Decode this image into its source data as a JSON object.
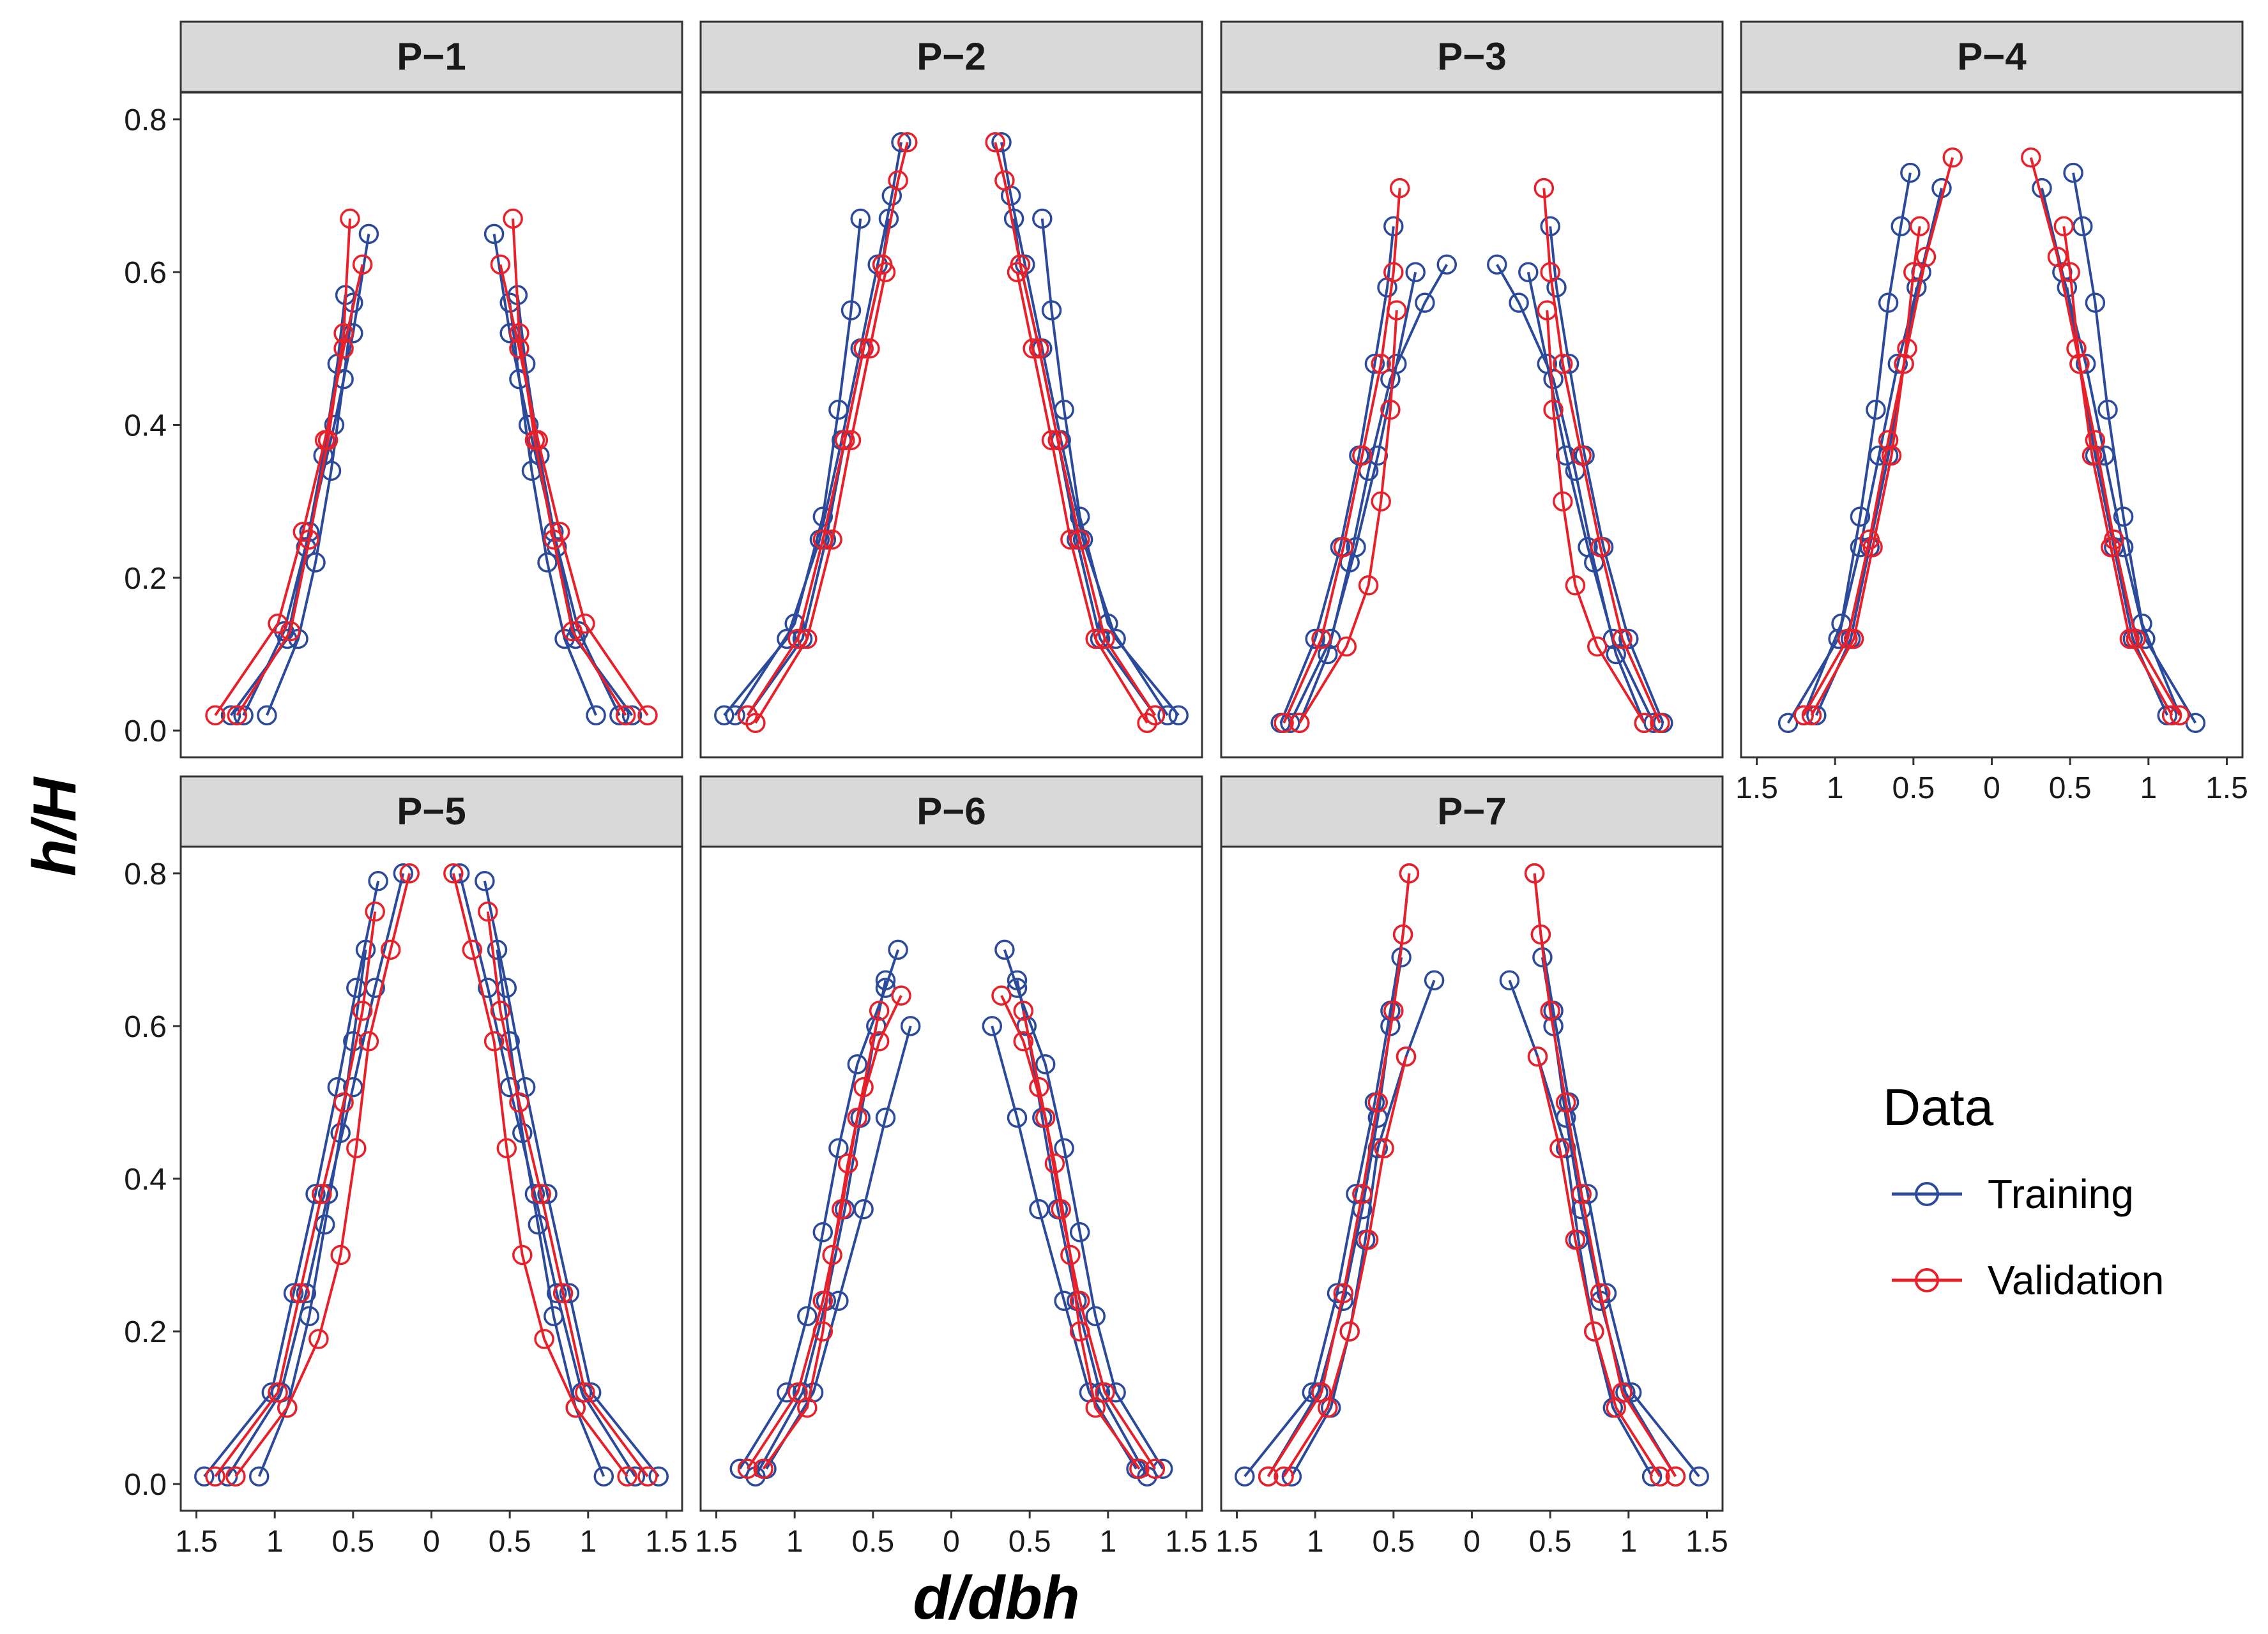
{
  "chart_data": {
    "type": "line",
    "facet_layout": "wrap 4 columns",
    "xlabel": "d/dbh",
    "ylabel": "h/H",
    "xlim": [
      -1.6,
      1.6
    ],
    "ylim": [
      -0.035,
      0.835
    ],
    "x_ticks": [
      -1.5,
      -1,
      -0.5,
      0,
      0.5,
      1,
      1.5
    ],
    "x_tick_labels": [
      "1.5",
      "1",
      "0.5",
      "0",
      "0.5",
      "1",
      "1.5"
    ],
    "y_ticks": [
      0.0,
      0.2,
      0.4,
      0.6,
      0.8
    ],
    "y_tick_labels": [
      "0.0",
      "0.2",
      "0.4",
      "0.6",
      "0.8"
    ],
    "legend": {
      "title": "Data",
      "position": "right",
      "entries": [
        {
          "name": "Training",
          "color": "#2b4a9b"
        },
        {
          "name": "Validation",
          "color": "#e8202a"
        }
      ]
    },
    "marker": "open-circle",
    "note": "Each panel shows mirrored stem profiles (relative diameter d/dbh plotted symmetrically on both sides of 0) against relative height h/H for many trees; series below are representative profiles estimated from the figure.",
    "panels": [
      {
        "title": "P−1",
        "series": [
          {
            "group": "Training",
            "h": [
              0.02,
              0.12,
              0.24,
              0.36,
              0.48,
              0.57
            ],
            "r": [
              1.28,
              0.92,
              0.8,
              0.69,
              0.6,
              0.55
            ]
          },
          {
            "group": "Training",
            "h": [
              0.02,
              0.13,
              0.26,
              0.4,
              0.52,
              0.65
            ],
            "r": [
              1.2,
              0.94,
              0.78,
              0.62,
              0.5,
              0.4
            ]
          },
          {
            "group": "Training",
            "h": [
              0.02,
              0.12,
              0.22,
              0.34,
              0.46,
              0.56
            ],
            "r": [
              1.05,
              0.85,
              0.74,
              0.64,
              0.56,
              0.5
            ]
          },
          {
            "group": "Validation",
            "h": [
              0.02,
              0.14,
              0.26,
              0.38,
              0.5,
              0.61
            ],
            "r": [
              1.38,
              0.98,
              0.82,
              0.68,
              0.56,
              0.44
            ]
          },
          {
            "group": "Validation",
            "h": [
              0.02,
              0.13,
              0.25,
              0.38,
              0.52,
              0.67
            ],
            "r": [
              1.24,
              0.9,
              0.78,
              0.66,
              0.56,
              0.52
            ]
          }
        ]
      },
      {
        "title": "P−2",
        "series": [
          {
            "group": "Training",
            "h": [
              0.02,
              0.12,
              0.25,
              0.38,
              0.5,
              0.61,
              0.7,
              0.77
            ],
            "r": [
              1.45,
              1.05,
              0.84,
              0.7,
              0.58,
              0.47,
              0.38,
              0.32
            ]
          },
          {
            "group": "Training",
            "h": [
              0.02,
              0.12,
              0.25,
              0.38,
              0.5,
              0.61,
              0.67
            ],
            "r": [
              1.3,
              0.95,
              0.8,
              0.68,
              0.56,
              0.44,
              0.4
            ]
          },
          {
            "group": "Training",
            "h": [
              0.02,
              0.14,
              0.28,
              0.42,
              0.55,
              0.67
            ],
            "r": [
              1.38,
              1.0,
              0.82,
              0.72,
              0.64,
              0.58
            ]
          },
          {
            "group": "Validation",
            "h": [
              0.02,
              0.12,
              0.25,
              0.38,
              0.5,
              0.61,
              0.72,
              0.77
            ],
            "r": [
              1.3,
              0.98,
              0.82,
              0.68,
              0.56,
              0.44,
              0.34,
              0.28
            ]
          },
          {
            "group": "Validation",
            "h": [
              0.01,
              0.12,
              0.25,
              0.38,
              0.5,
              0.6
            ],
            "r": [
              1.25,
              0.92,
              0.76,
              0.64,
              0.52,
              0.42
            ]
          }
        ]
      },
      {
        "title": "P−3",
        "series": [
          {
            "group": "Training",
            "h": [
              0.01,
              0.12,
              0.24,
              0.36,
              0.48,
              0.58,
              0.66
            ],
            "r": [
              1.22,
              1.0,
              0.84,
              0.72,
              0.62,
              0.54,
              0.5
            ]
          },
          {
            "group": "Training",
            "h": [
              0.01,
              0.1,
              0.22,
              0.34,
              0.46,
              0.56,
              0.61
            ],
            "r": [
              1.1,
              0.92,
              0.78,
              0.66,
              0.52,
              0.3,
              0.16
            ]
          },
          {
            "group": "Training",
            "h": [
              0.01,
              0.12,
              0.24,
              0.36,
              0.48,
              0.6
            ],
            "r": [
              1.16,
              0.9,
              0.74,
              0.6,
              0.48,
              0.36
            ]
          },
          {
            "group": "Validation",
            "h": [
              0.01,
              0.12,
              0.24,
              0.36,
              0.48,
              0.6,
              0.71
            ],
            "r": [
              1.2,
              0.96,
              0.82,
              0.7,
              0.58,
              0.5,
              0.46
            ]
          },
          {
            "group": "Validation",
            "h": [
              0.01,
              0.11,
              0.19,
              0.3,
              0.42,
              0.55
            ],
            "r": [
              1.1,
              0.8,
              0.66,
              0.58,
              0.52,
              0.48
            ]
          }
        ]
      },
      {
        "title": "P−4",
        "series": [
          {
            "group": "Training",
            "h": [
              0.01,
              0.12,
              0.24,
              0.36,
              0.48,
              0.6,
              0.71
            ],
            "r": [
              1.3,
              0.98,
              0.84,
              0.72,
              0.6,
              0.45,
              0.32
            ]
          },
          {
            "group": "Training",
            "h": [
              0.02,
              0.14,
              0.28,
              0.42,
              0.56,
              0.66,
              0.73
            ],
            "r": [
              1.2,
              0.96,
              0.84,
              0.74,
              0.66,
              0.58,
              0.52
            ]
          },
          {
            "group": "Training",
            "h": [
              0.02,
              0.12,
              0.24,
              0.36,
              0.48,
              0.58
            ],
            "r": [
              1.12,
              0.9,
              0.78,
              0.66,
              0.56,
              0.48
            ]
          },
          {
            "group": "Validation",
            "h": [
              0.02,
              0.12,
              0.25,
              0.38,
              0.5,
              0.62,
              0.75
            ],
            "r": [
              1.2,
              0.92,
              0.78,
              0.66,
              0.54,
              0.42,
              0.25
            ]
          },
          {
            "group": "Validation",
            "h": [
              0.02,
              0.12,
              0.24,
              0.36,
              0.48,
              0.6,
              0.66
            ],
            "r": [
              1.15,
              0.88,
              0.76,
              0.64,
              0.56,
              0.5,
              0.46
            ]
          }
        ]
      },
      {
        "title": "P−5",
        "series": [
          {
            "group": "Training",
            "h": [
              0.01,
              0.12,
              0.25,
              0.38,
              0.52,
              0.65,
              0.79
            ],
            "r": [
              1.45,
              1.02,
              0.88,
              0.74,
              0.6,
              0.48,
              0.34
            ]
          },
          {
            "group": "Training",
            "h": [
              0.01,
              0.12,
              0.25,
              0.38,
              0.52,
              0.65,
              0.8
            ],
            "r": [
              1.3,
              0.96,
              0.8,
              0.66,
              0.5,
              0.36,
              0.18
            ]
          },
          {
            "group": "Training",
            "h": [
              0.01,
              0.1,
              0.22,
              0.34,
              0.46,
              0.58,
              0.7
            ],
            "r": [
              1.1,
              0.92,
              0.78,
              0.68,
              0.58,
              0.5,
              0.42
            ]
          },
          {
            "group": "Validation",
            "h": [
              0.01,
              0.12,
              0.25,
              0.38,
              0.5,
              0.62,
              0.75
            ],
            "r": [
              1.38,
              0.98,
              0.84,
              0.7,
              0.56,
              0.44,
              0.36
            ]
          },
          {
            "group": "Validation",
            "h": [
              0.01,
              0.1,
              0.19,
              0.3,
              0.44,
              0.58,
              0.7,
              0.8
            ],
            "r": [
              1.25,
              0.92,
              0.72,
              0.58,
              0.48,
              0.4,
              0.26,
              0.14
            ]
          }
        ]
      },
      {
        "title": "P−6",
        "series": [
          {
            "group": "Training",
            "h": [
              0.02,
              0.12,
              0.22,
              0.33,
              0.44,
              0.55,
              0.65,
              0.7
            ],
            "r": [
              1.35,
              1.05,
              0.92,
              0.82,
              0.72,
              0.6,
              0.42,
              0.34
            ]
          },
          {
            "group": "Training",
            "h": [
              0.01,
              0.12,
              0.24,
              0.36,
              0.48,
              0.6,
              0.66
            ],
            "r": [
              1.25,
              0.95,
              0.8,
              0.68,
              0.58,
              0.48,
              0.42
            ]
          },
          {
            "group": "Training",
            "h": [
              0.02,
              0.12,
              0.24,
              0.36,
              0.48,
              0.6
            ],
            "r": [
              1.18,
              0.88,
              0.72,
              0.56,
              0.42,
              0.26
            ]
          },
          {
            "group": "Validation",
            "h": [
              0.02,
              0.12,
              0.24,
              0.36,
              0.48,
              0.58,
              0.64
            ],
            "r": [
              1.3,
              0.98,
              0.82,
              0.7,
              0.6,
              0.46,
              0.32
            ]
          },
          {
            "group": "Validation",
            "h": [
              0.02,
              0.1,
              0.2,
              0.3,
              0.42,
              0.52,
              0.62
            ],
            "r": [
              1.2,
              0.92,
              0.82,
              0.76,
              0.66,
              0.56,
              0.46
            ]
          }
        ]
      },
      {
        "title": "P−7",
        "series": [
          {
            "group": "Training",
            "h": [
              0.01,
              0.12,
              0.25,
              0.38,
              0.5,
              0.62,
              0.72,
              0.8
            ],
            "r": [
              1.45,
              1.02,
              0.86,
              0.74,
              0.62,
              0.52,
              0.44,
              0.4
            ]
          },
          {
            "group": "Training",
            "h": [
              0.01,
              0.12,
              0.24,
              0.36,
              0.48,
              0.6,
              0.69
            ],
            "r": [
              1.3,
              0.98,
              0.82,
              0.7,
              0.6,
              0.52,
              0.45
            ]
          },
          {
            "group": "Training",
            "h": [
              0.01,
              0.1,
              0.2,
              0.32,
              0.44,
              0.56,
              0.66
            ],
            "r": [
              1.15,
              0.9,
              0.78,
              0.68,
              0.6,
              0.42,
              0.24
            ]
          },
          {
            "group": "Validation",
            "h": [
              0.01,
              0.12,
              0.25,
              0.38,
              0.5,
              0.62,
              0.72,
              0.8
            ],
            "r": [
              1.3,
              0.96,
              0.82,
              0.7,
              0.6,
              0.5,
              0.44,
              0.4
            ]
          },
          {
            "group": "Validation",
            "h": [
              0.01,
              0.1,
              0.2,
              0.32,
              0.44,
              0.56
            ],
            "r": [
              1.2,
              0.92,
              0.78,
              0.66,
              0.56,
              0.42
            ]
          }
        ]
      }
    ]
  }
}
